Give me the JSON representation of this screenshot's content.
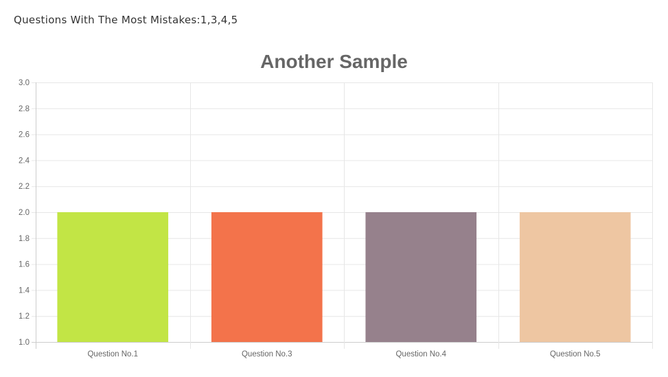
{
  "page": {
    "heading_label": "Questions With The Most Mistakes:",
    "heading_values": "1,3,4,5"
  },
  "chart_data": {
    "type": "bar",
    "title": "Another Sample",
    "xlabel": "",
    "ylabel": "",
    "categories": [
      "Question No.1",
      "Question No.3",
      "Question No.4",
      "Question No.5"
    ],
    "values": [
      2,
      2,
      2,
      2
    ],
    "colors": [
      "#c2e545",
      "#f3734b",
      "#96818c",
      "#eec6a2"
    ],
    "ylim": [
      1.0,
      3.0
    ],
    "yticks": [
      "1.0",
      "1.2",
      "1.4",
      "1.6",
      "1.8",
      "2.0",
      "2.2",
      "2.4",
      "2.6",
      "2.8",
      "3.0"
    ],
    "grid": true,
    "legend": "none"
  }
}
